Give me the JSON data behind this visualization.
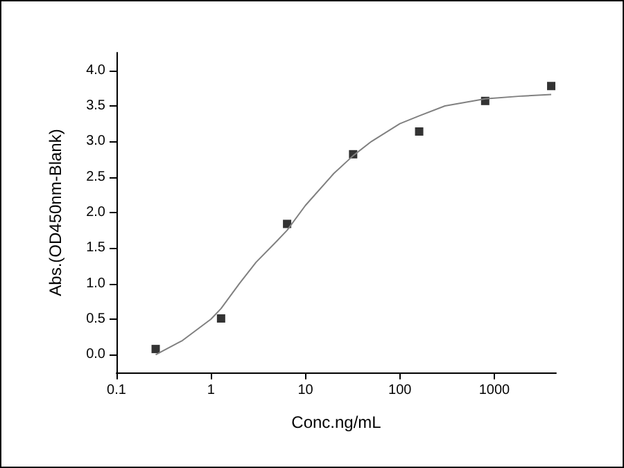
{
  "chart_data": {
    "type": "scatter",
    "xlabel": "Conc.ng/mL",
    "ylabel": "Abs.(OD450nm-Blank)",
    "log": "x",
    "grid": false,
    "xlim": [
      0.1,
      4500
    ],
    "xticks": [
      0.1,
      1,
      10,
      100,
      1000
    ],
    "ylim": [
      -0.25,
      4.25
    ],
    "yticks": [
      {
        "value": 0,
        "label": "0.0"
      },
      {
        "value": 0.5,
        "label": "0.5"
      },
      {
        "value": 1,
        "label": "1.0"
      },
      {
        "value": 1.5,
        "label": "1.5"
      },
      {
        "value": 2,
        "label": "2.0"
      },
      {
        "value": 2.5,
        "label": "2.5"
      },
      {
        "value": 3,
        "label": "3.0"
      },
      {
        "value": 3.5,
        "label": "3.5"
      },
      {
        "value": 4,
        "label": "4.0"
      }
    ],
    "series": [
      {
        "marker": "square",
        "color": "#000000",
        "x": [
          0.26,
          1.28,
          6.4,
          32,
          160,
          800,
          4000
        ],
        "values": [
          0.08,
          0.51,
          1.84,
          2.82,
          3.14,
          3.57,
          3.78
        ]
      },
      {
        "type": "line",
        "marker": "none",
        "color": "#808080",
        "x": [
          0.26,
          0.5,
          1,
          1.28,
          2,
          3,
          5,
          6.4,
          10,
          20,
          32,
          50,
          100,
          160,
          300,
          800,
          2000,
          4000
        ],
        "values": [
          0.0,
          0.2,
          0.5,
          0.65,
          1.0,
          1.3,
          1.6,
          1.75,
          2.1,
          2.55,
          2.8,
          3.0,
          3.25,
          3.36,
          3.5,
          3.6,
          3.64,
          3.66
        ]
      }
    ]
  }
}
